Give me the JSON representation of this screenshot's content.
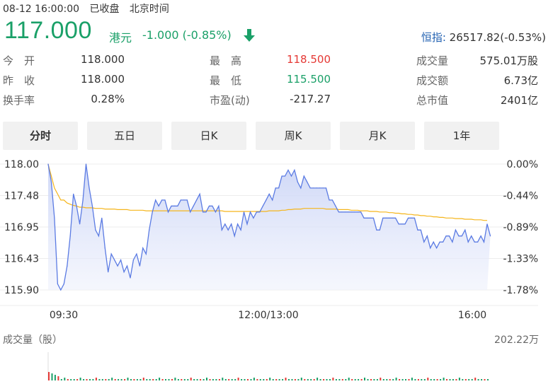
{
  "header": {
    "datetime": "08-12 16:00:00",
    "status": "已收盘",
    "timezone": "北京时间"
  },
  "quote": {
    "price": "117.000",
    "currency": "港元",
    "change": "-1.000 (-0.85%)",
    "direction_icon": "arrow-down-icon",
    "index_label": "恒指:",
    "index_value": "26517.82(-0.53%)",
    "color_down": "#1aa068",
    "color_up": "#e53935"
  },
  "stats": {
    "col1": [
      {
        "label": "今　开",
        "value": "118.000"
      },
      {
        "label": "昨　收",
        "value": "118.000"
      },
      {
        "label": "换手率",
        "value": "0.28%"
      }
    ],
    "col2": [
      {
        "label": "最　高",
        "value": "118.500"
      },
      {
        "label": "最　低",
        "value": "115.500"
      },
      {
        "label": "市盈(动)",
        "value": "-217.27"
      }
    ],
    "col3": [
      {
        "label": "成交量",
        "value": "575.01万股"
      },
      {
        "label": "成交额",
        "value": "6.73亿"
      },
      {
        "label": "总市值",
        "value": "2401亿"
      }
    ]
  },
  "tabs": [
    "分时",
    "五日",
    "日K",
    "周K",
    "月K",
    "1年"
  ],
  "active_tab": "分时",
  "volume": {
    "label": "成交量（股）",
    "max_label": "202.22万"
  },
  "chart_data": {
    "type": "line",
    "y_ticks": [
      "118.00",
      "117.48",
      "116.95",
      "116.43",
      "115.90"
    ],
    "y_pct_ticks": [
      "0.00%",
      "-0.44%",
      "-0.89%",
      "-1.33%",
      "-1.78%"
    ],
    "x_ticks": [
      "09:30",
      "12:00/13:00",
      "16:00"
    ],
    "ylim": [
      115.9,
      118.0
    ],
    "n_points": 140,
    "series": [
      {
        "role": "price",
        "color": "#5b7be3",
        "values": [
          118.0,
          117.7,
          117.1,
          116.0,
          115.9,
          116.0,
          116.3,
          116.8,
          117.5,
          117.3,
          117.0,
          117.4,
          118.0,
          117.6,
          117.3,
          116.9,
          116.8,
          117.1,
          116.6,
          116.2,
          116.5,
          116.4,
          116.3,
          116.4,
          116.2,
          116.3,
          116.1,
          116.4,
          116.5,
          116.3,
          116.6,
          116.5,
          116.9,
          117.2,
          117.4,
          117.3,
          117.4,
          117.4,
          117.2,
          117.3,
          117.3,
          117.3,
          117.4,
          117.4,
          117.4,
          117.2,
          117.3,
          117.4,
          117.5,
          117.2,
          117.2,
          117.3,
          117.3,
          117.2,
          117.3,
          116.9,
          117.0,
          116.9,
          117.0,
          116.8,
          117.0,
          116.9,
          117.2,
          117.0,
          117.2,
          117.1,
          117.2,
          117.2,
          117.3,
          117.4,
          117.5,
          117.4,
          117.6,
          117.6,
          117.8,
          117.8,
          117.9,
          117.8,
          117.9,
          117.7,
          117.6,
          117.8,
          117.7,
          117.6,
          117.6,
          117.6,
          117.6,
          117.6,
          117.6,
          117.4,
          117.4,
          117.3,
          117.2,
          117.2,
          117.2,
          117.2,
          117.2,
          117.2,
          117.2,
          117.2,
          117.1,
          117.1,
          117.1,
          117.1,
          116.9,
          116.9,
          117.1,
          117.1,
          117.1,
          117.1,
          117.1,
          117.0,
          117.0,
          117.0,
          117.1,
          117.1,
          117.1,
          116.9,
          116.9,
          116.7,
          116.8,
          116.6,
          116.7,
          116.6,
          116.7,
          116.7,
          116.8,
          116.8,
          116.7,
          116.9,
          116.8,
          116.8,
          116.9,
          116.7,
          116.8,
          116.7,
          116.7,
          116.8,
          116.7,
          117.0,
          116.8
        ],
        "note_unlabeled": true
      },
      {
        "role": "average",
        "color": "#f5b51b",
        "values": [
          118.0,
          117.8,
          117.6,
          117.5,
          117.4,
          117.4,
          117.35,
          117.33,
          117.31,
          117.3,
          117.28,
          117.28,
          117.27,
          117.27,
          117.27,
          117.26,
          117.26,
          117.26,
          117.25,
          117.25,
          117.25,
          117.25,
          117.24,
          117.24,
          117.24,
          117.24,
          117.23,
          117.23,
          117.23,
          117.23,
          117.23,
          117.22,
          117.22,
          117.22,
          117.22,
          117.22,
          117.22,
          117.22,
          117.22,
          117.22,
          117.22,
          117.22,
          117.22,
          117.22,
          117.22,
          117.22,
          117.22,
          117.22,
          117.22,
          117.22,
          117.22,
          117.22,
          117.22,
          117.22,
          117.22,
          117.22,
          117.21,
          117.21,
          117.21,
          117.21,
          117.21,
          117.21,
          117.21,
          117.21,
          117.21,
          117.21,
          117.21,
          117.21,
          117.21,
          117.21,
          117.22,
          117.22,
          117.22,
          117.22,
          117.23,
          117.23,
          117.24,
          117.24,
          117.25,
          117.25,
          117.25,
          117.26,
          117.26,
          117.26,
          117.26,
          117.26,
          117.26,
          117.26,
          117.25,
          117.25,
          117.25,
          117.25,
          117.24,
          117.24,
          117.24,
          117.24,
          117.23,
          117.23,
          117.23,
          117.22,
          117.22,
          117.22,
          117.21,
          117.21,
          117.21,
          117.2,
          117.2,
          117.2,
          117.19,
          117.19,
          117.18,
          117.18,
          117.17,
          117.17,
          117.16,
          117.16,
          117.15,
          117.15,
          117.14,
          117.14,
          117.13,
          117.13,
          117.12,
          117.12,
          117.11,
          117.11,
          117.1,
          117.1,
          117.1,
          117.09,
          117.09,
          117.09,
          117.08,
          117.08,
          117.08,
          117.07,
          117.07,
          117.07,
          117.06,
          117.06
        ]
      }
    ],
    "grid": true
  }
}
